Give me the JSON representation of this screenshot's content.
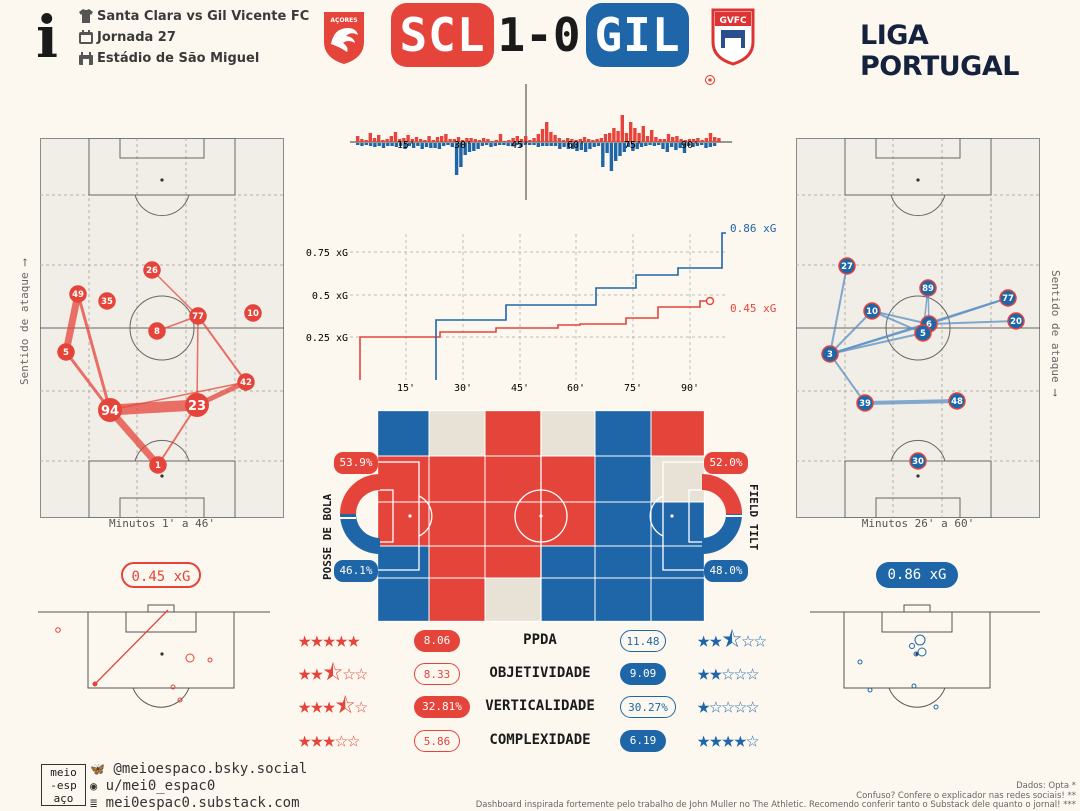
{
  "header": {
    "match": "Santa Clara vs Gil Vicente FC",
    "round": "Jornada 27",
    "stadium": "Estádio de São Miguel",
    "home_code": "SCL",
    "away_code": "GIL",
    "score": "1-0",
    "league": "LIGA PORTUGAL",
    "home_crest_text": "AÇORES",
    "away_crest_text": "GVFC"
  },
  "colors": {
    "home": "#e5443b",
    "away": "#1e66a8",
    "neutral": "#e8e2d6",
    "bg": "#fdf8ef"
  },
  "home_network": {
    "label": "Minutos 1' a 46'",
    "xg": "0.45 xG",
    "players": [
      {
        "n": "49",
        "big": false
      },
      {
        "n": "35",
        "big": false
      },
      {
        "n": "26",
        "big": false
      },
      {
        "n": "8",
        "big": false
      },
      {
        "n": "77",
        "big": false
      },
      {
        "n": "10",
        "big": false
      },
      {
        "n": "5",
        "big": false
      },
      {
        "n": "42",
        "big": false
      },
      {
        "n": "94",
        "big": true
      },
      {
        "n": "23",
        "big": true
      },
      {
        "n": "1",
        "big": false
      }
    ]
  },
  "away_network": {
    "label": "Minutos 26' a 60'",
    "xg": "0.86 xG",
    "players": [
      {
        "n": "27"
      },
      {
        "n": "89"
      },
      {
        "n": "77"
      },
      {
        "n": "10"
      },
      {
        "n": "6"
      },
      {
        "n": "5"
      },
      {
        "n": "20"
      },
      {
        "n": "3"
      },
      {
        "n": "39"
      },
      {
        "n": "48"
      },
      {
        "n": "30"
      }
    ]
  },
  "side_label": "Sentido de ataque",
  "timeline": {
    "ticks": [
      "15'",
      "30'",
      "45'",
      "60'",
      "75'",
      "90'"
    ],
    "home_xg_final": "0.45 xG",
    "away_xg_final": "0.86 xG",
    "y_labels": [
      "0.75 xG",
      "0.5 xG",
      "0.25 xG"
    ]
  },
  "possession": {
    "label": "POSSE DE BOLA",
    "home": "53.9%",
    "away": "46.1%",
    "home_value": 0.539
  },
  "field_tilt": {
    "label": "FIELD TILT",
    "home": "52.0%",
    "away": "48.0%",
    "home_value": 0.52
  },
  "stats": [
    {
      "name": "PPDA",
      "home": "8.06",
      "away": "11.48",
      "home_stars": 5,
      "away_stars": 2.5,
      "home_filled": true,
      "away_filled": false
    },
    {
      "name": "OBJETIVIDADE",
      "home": "8.33",
      "away": "9.09",
      "home_stars": 2.5,
      "away_stars": 2,
      "home_filled": false,
      "away_filled": true
    },
    {
      "name": "VERTICALIDADE",
      "home": "32.81%",
      "away": "30.27%",
      "home_stars": 3.5,
      "away_stars": 1,
      "home_filled": true,
      "away_filled": false
    },
    {
      "name": "COMPLEXIDADE",
      "home": "5.86",
      "away": "6.19",
      "home_stars": 3,
      "away_stars": 4,
      "home_filled": false,
      "away_filled": true
    }
  ],
  "social": {
    "logo_text": "meio-esp-aço",
    "bluesky": "@meioespaco.bsky.social",
    "reddit": "u/mei0_espac0",
    "substack": "mei0espac0.substack.com"
  },
  "footer": {
    "data": "Dados: Opta *",
    "confuso": "Confuso? Confere o explicador nas redes sociais! **",
    "credit": "Dashboard inspirada fortemente pelo trabalho de John Muller no The Athletic. Recomendo conferir tanto o Substack dele quanto o jornal! ***"
  }
}
